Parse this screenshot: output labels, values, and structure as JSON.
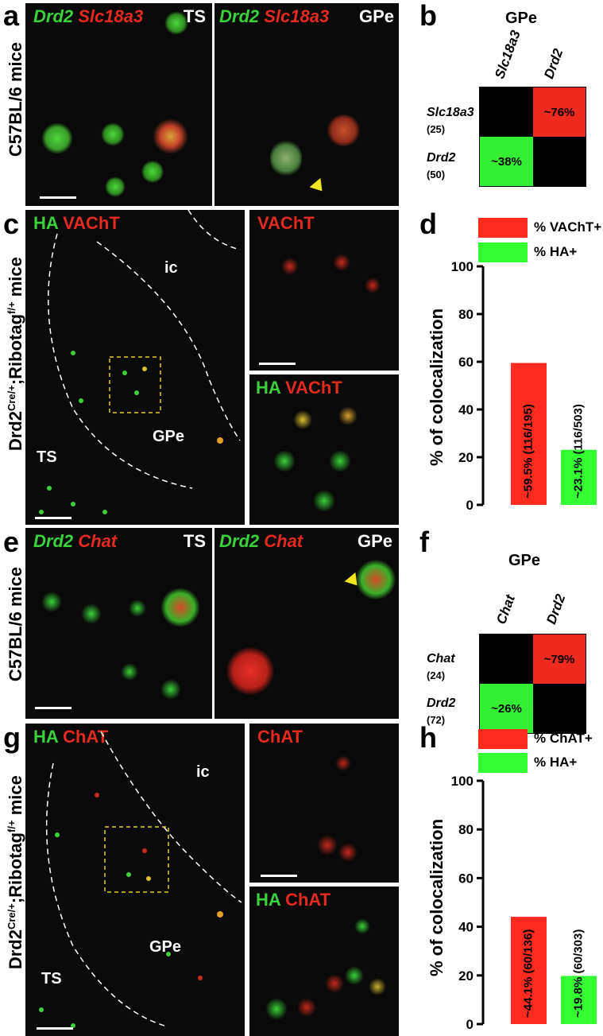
{
  "panels": {
    "a": {
      "label": "a",
      "ylabel": "C57BL/6 mice",
      "left": {
        "green": "Drd2",
        "red": "Slc18a3",
        "region": "TS"
      },
      "right": {
        "green": "Drd2",
        "red": "Slc18a3",
        "region": "GPe"
      }
    },
    "b": {
      "label": "b",
      "title": "GPe",
      "cols": [
        "Slc18a3",
        "Drd2"
      ],
      "rows": [
        {
          "name": "Slc18a3",
          "count": "(25)"
        },
        {
          "name": "Drd2",
          "count": "(50)"
        }
      ],
      "upper_value": "~76%",
      "lower_value": "~38%"
    },
    "c": {
      "label": "c",
      "ylabel_main": "Drd2",
      "ylabel_sup1": "Cre/+",
      "ylabel_mid": ";Ribotag",
      "ylabel_sup2": "f/+",
      "ylabel_end": " mice",
      "main": {
        "green": "HA",
        "red": "VAChT",
        "ic": "ic",
        "ts": "TS",
        "gpe": "GPe"
      },
      "top_inset": {
        "red": "VAChT"
      },
      "bottom_inset": {
        "green": "HA",
        "red": "VAChT"
      }
    },
    "d": {
      "label": "d",
      "legend": [
        {
          "label": "% VAChT+",
          "color": "#ff2b1f"
        },
        {
          "label": "% HA+",
          "color": "#33ff33"
        }
      ],
      "ylabel": "% of colocalization",
      "ticks": [
        "100",
        "80",
        "60",
        "40",
        "20",
        "0"
      ]
    },
    "e": {
      "label": "e",
      "ylabel": "C57BL/6 mice",
      "left": {
        "green": "Drd2",
        "red": "Chat",
        "region": "TS"
      },
      "right": {
        "green": "Drd2",
        "red": "Chat",
        "region": "GPe"
      }
    },
    "f": {
      "label": "f",
      "title": "GPe",
      "cols": [
        "Chat",
        "Drd2"
      ],
      "rows": [
        {
          "name": "Chat",
          "count": "(24)"
        },
        {
          "name": "Drd2",
          "count": "(72)"
        }
      ],
      "upper_value": "~79%",
      "lower_value": "~26%"
    },
    "g": {
      "label": "g",
      "ylabel_main": "Drd2",
      "ylabel_sup1": "Cre/+",
      "ylabel_mid": ";Ribotag",
      "ylabel_sup2": "f/+",
      "ylabel_end": " mice",
      "main": {
        "green": "HA",
        "red": "ChAT",
        "ic": "ic",
        "ts": "TS",
        "gpe": "GPe"
      },
      "top_inset": {
        "red": "ChAT"
      },
      "bottom_inset": {
        "green": "HA",
        "red": "ChAT"
      }
    },
    "h": {
      "label": "h",
      "legend": [
        {
          "label": "% ChAT+",
          "color": "#ff2b1f"
        },
        {
          "label": "% HA+",
          "color": "#33ff33"
        }
      ],
      "ylabel": "% of colocalization",
      "ticks": [
        "100",
        "80",
        "60",
        "40",
        "20",
        "0"
      ]
    }
  },
  "chart_data": [
    {
      "type": "bar",
      "panel": "d",
      "categories": [
        "% VAChT+",
        "% HA+"
      ],
      "values": [
        59.5,
        23.1
      ],
      "bar_labels": [
        "~59.5% (116/195)",
        "~23.1% (116/503)"
      ],
      "colors": [
        "#ff2b1f",
        "#33ff33"
      ],
      "ylabel": "% of colocalization",
      "ylim": [
        0,
        100
      ]
    },
    {
      "type": "bar",
      "panel": "h",
      "categories": [
        "% ChAT+",
        "% HA+"
      ],
      "values": [
        44.1,
        19.8
      ],
      "bar_labels": [
        "~44.1% (60/136)",
        "~19.8% (60/303)"
      ],
      "colors": [
        "#ff2b1f",
        "#33ff33"
      ],
      "ylabel": "% of colocalization",
      "ylim": [
        0,
        100
      ]
    }
  ]
}
